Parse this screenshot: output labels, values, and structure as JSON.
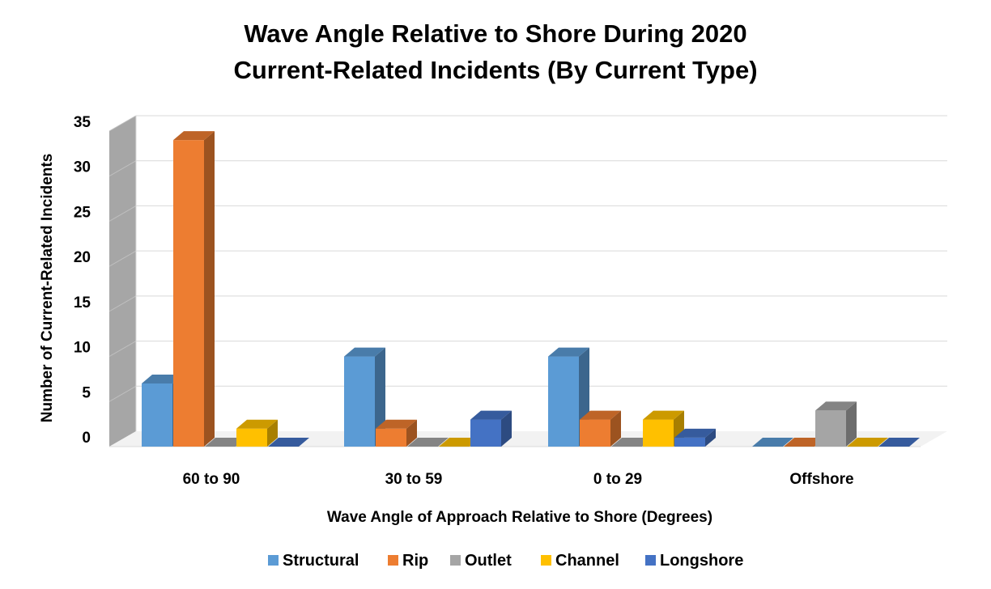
{
  "chart_data": {
    "type": "bar",
    "title_lines": [
      "Wave Angle Relative to Shore During 2020",
      "Current-Related Incidents (By Current Type)"
    ],
    "xlabel": "Wave Angle of Approach Relative to Shore (Degrees)",
    "ylabel": "Number of Current-Related Incidents",
    "categories": [
      "60 to 90",
      "30 to 59",
      "0 to 29",
      "Offshore"
    ],
    "ylim": [
      0,
      35
    ],
    "yticks": [
      0,
      5,
      10,
      15,
      20,
      25,
      30,
      35
    ],
    "grid": true,
    "legend_position": "bottom",
    "style": "3d-clustered-column",
    "series": [
      {
        "name": "Structural",
        "color": "#5B9BD5",
        "values": [
          7,
          10,
          10,
          0
        ]
      },
      {
        "name": "Rip",
        "color": "#ED7D31",
        "values": [
          34,
          2,
          3,
          0
        ]
      },
      {
        "name": "Outlet",
        "color": "#A5A5A5",
        "values": [
          0,
          0,
          0,
          4
        ]
      },
      {
        "name": "Channel",
        "color": "#FFC000",
        "values": [
          2,
          0,
          3,
          0
        ]
      },
      {
        "name": "Longshore",
        "color": "#4472C4",
        "values": [
          0,
          3,
          1,
          0
        ]
      }
    ]
  }
}
